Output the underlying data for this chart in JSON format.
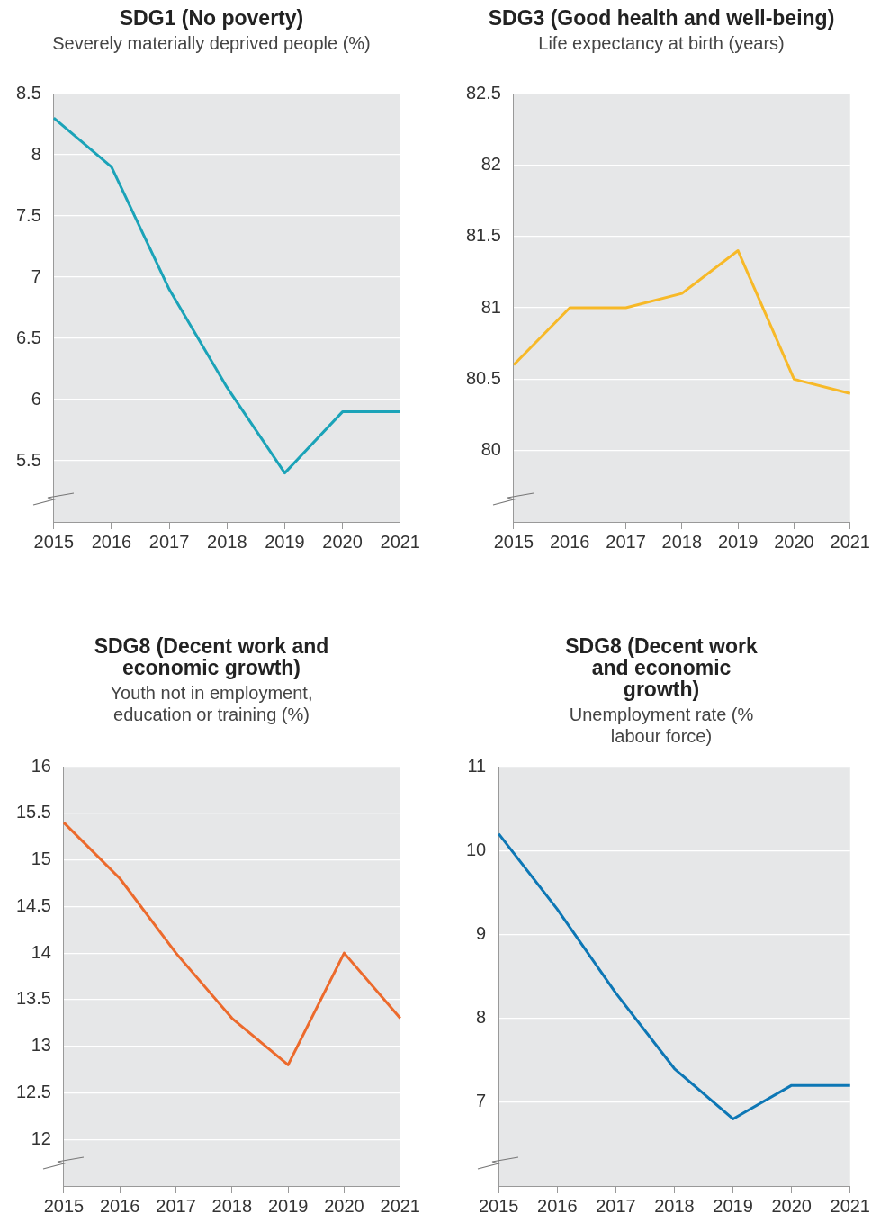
{
  "chart_data": [
    {
      "type": "line",
      "title": "SDG1 (No poverty)",
      "subtitle": "Severely materially deprived people (%)",
      "categories": [
        "2015",
        "2016",
        "2017",
        "2018",
        "2019",
        "2020",
        "2021"
      ],
      "series": [
        {
          "color": "#1ba3b8",
          "values": [
            8.3,
            7.9,
            6.9,
            6.1,
            5.4,
            5.9,
            5.9
          ]
        }
      ],
      "ylim": [
        5,
        8.5
      ],
      "yticks": [
        5.5,
        6,
        6.5,
        7,
        7.5,
        8,
        8.5
      ],
      "grid": "y",
      "legend": false,
      "marker": "none",
      "line_style": "solid"
    },
    {
      "type": "line",
      "title": "SDG3 (Good health and well-being)",
      "subtitle": "Life expectancy at birth (years)",
      "categories": [
        "2015",
        "2016",
        "2017",
        "2018",
        "2019",
        "2020",
        "2021"
      ],
      "series": [
        {
          "color": "#f7b928",
          "values": [
            80.6,
            81.0,
            81.0,
            81.1,
            81.4,
            80.5,
            80.4
          ]
        }
      ],
      "ylim": [
        79.5,
        82.5
      ],
      "yticks": [
        80,
        80.5,
        81,
        81.5,
        82,
        82.5
      ],
      "grid": "y",
      "legend": false,
      "marker": "none",
      "line_style": "solid"
    },
    {
      "type": "line",
      "title": "SDG8 (Decent work and economic growth)",
      "subtitle": "Youth not in employment, education or training (%)",
      "categories": [
        "2015",
        "2016",
        "2017",
        "2018",
        "2019",
        "2020",
        "2021"
      ],
      "series": [
        {
          "color": "#ec6a2c",
          "values": [
            15.4,
            14.8,
            14.0,
            13.3,
            12.8,
            14.0,
            13.3
          ]
        }
      ],
      "ylim": [
        11.5,
        16
      ],
      "yticks": [
        12,
        12.5,
        13,
        13.5,
        14,
        14.5,
        15,
        15.5,
        16
      ],
      "grid": "y",
      "legend": false,
      "marker": "none",
      "line_style": "solid"
    },
    {
      "type": "line",
      "title": "SDG8 (Decent work and economic growth)",
      "subtitle": "Unemployment rate (% labour force)",
      "categories": [
        "2015",
        "2016",
        "2017",
        "2018",
        "2019",
        "2020",
        "2021"
      ],
      "series": [
        {
          "color": "#0d77b5",
          "values": [
            10.2,
            9.3,
            8.3,
            7.4,
            6.8,
            7.2,
            7.2
          ]
        }
      ],
      "ylim": [
        6,
        11
      ],
      "yticks": [
        7,
        8,
        9,
        10,
        11
      ],
      "grid": "y",
      "legend": false,
      "marker": "none",
      "line_style": "solid"
    }
  ]
}
